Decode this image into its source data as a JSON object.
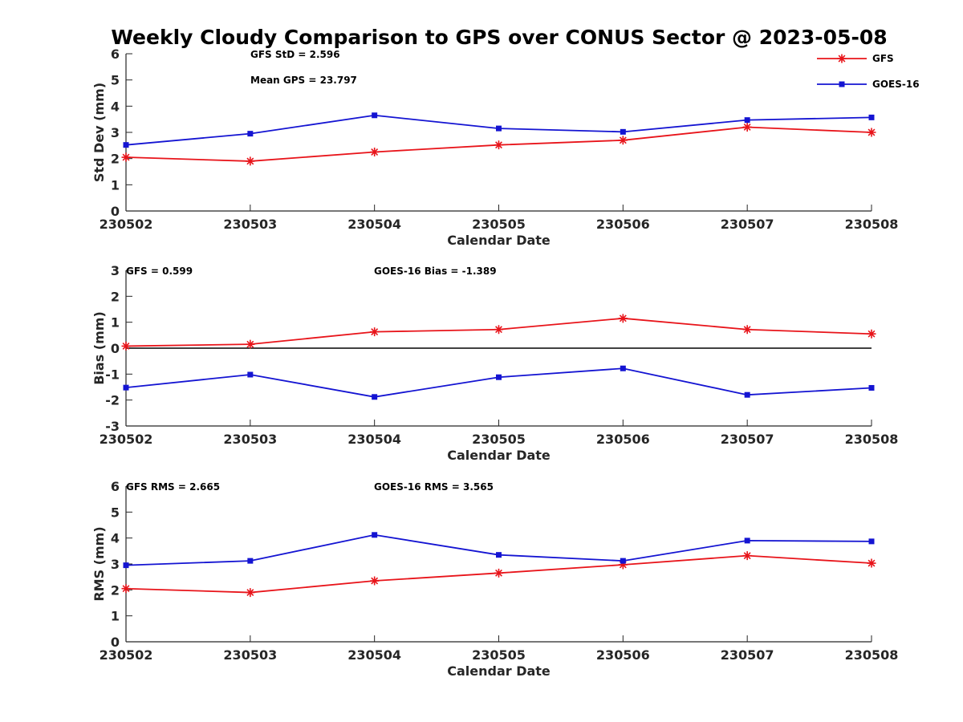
{
  "title": "Weekly Cloudy Comparison to GPS over CONUS Sector @ 2023-05-08",
  "legend": [
    {
      "name": "GFS",
      "color": "#e8141a",
      "marker": "star"
    },
    {
      "name": "GOES-16",
      "color": "#1414d2",
      "marker": "square"
    }
  ],
  "chart_data": [
    {
      "type": "line",
      "categories": [
        "230502",
        "230503",
        "230504",
        "230505",
        "230506",
        "230507",
        "230508"
      ],
      "xlabel": "Calendar Date",
      "ylabel": "Std Dev (mm)",
      "ylim": [
        0,
        6
      ],
      "yticks": [
        "0",
        "1",
        "2",
        "3",
        "4",
        "5",
        "6"
      ],
      "grid": false,
      "legend_position": "top-right",
      "annotations": [
        "GFS StD = 2.596",
        "Mean GPS = 23.797"
      ],
      "series": [
        {
          "name": "GFS",
          "values": [
            2.05,
            1.9,
            2.25,
            2.52,
            2.7,
            3.2,
            3.0
          ]
        },
        {
          "name": "GOES-16",
          "values": [
            2.52,
            2.95,
            3.65,
            3.15,
            3.02,
            3.47,
            3.57
          ]
        }
      ]
    },
    {
      "type": "line",
      "categories": [
        "230502",
        "230503",
        "230504",
        "230505",
        "230506",
        "230507",
        "230508"
      ],
      "xlabel": "Calendar Date",
      "ylabel": "Bias (mm)",
      "ylim": [
        -3,
        3
      ],
      "yticks": [
        "-3",
        "-2",
        "-1",
        "0",
        "1",
        "2",
        "3"
      ],
      "grid": false,
      "zero_line": true,
      "annotations": [
        "GFS = 0.599",
        "GOES-16 Bias  = -1.389"
      ],
      "series": [
        {
          "name": "GFS",
          "values": [
            0.08,
            0.15,
            0.63,
            0.72,
            1.15,
            0.72,
            0.55
          ]
        },
        {
          "name": "GOES-16",
          "values": [
            -1.52,
            -1.02,
            -1.88,
            -1.12,
            -0.78,
            -1.8,
            -1.53
          ]
        }
      ]
    },
    {
      "type": "line",
      "categories": [
        "230502",
        "230503",
        "230504",
        "230505",
        "230506",
        "230507",
        "230508"
      ],
      "xlabel": "Calendar Date",
      "ylabel": "RMS (mm)",
      "ylim": [
        0,
        6
      ],
      "yticks": [
        "0",
        "1",
        "2",
        "3",
        "4",
        "5",
        "6"
      ],
      "grid": false,
      "annotations": [
        "GFS RMS = 2.665",
        "GOES-16 RMS = 3.565"
      ],
      "series": [
        {
          "name": "GFS",
          "values": [
            2.05,
            1.9,
            2.35,
            2.65,
            2.97,
            3.32,
            3.03
          ]
        },
        {
          "name": "GOES-16",
          "values": [
            2.95,
            3.12,
            4.12,
            3.35,
            3.12,
            3.9,
            3.87
          ]
        }
      ]
    }
  ]
}
